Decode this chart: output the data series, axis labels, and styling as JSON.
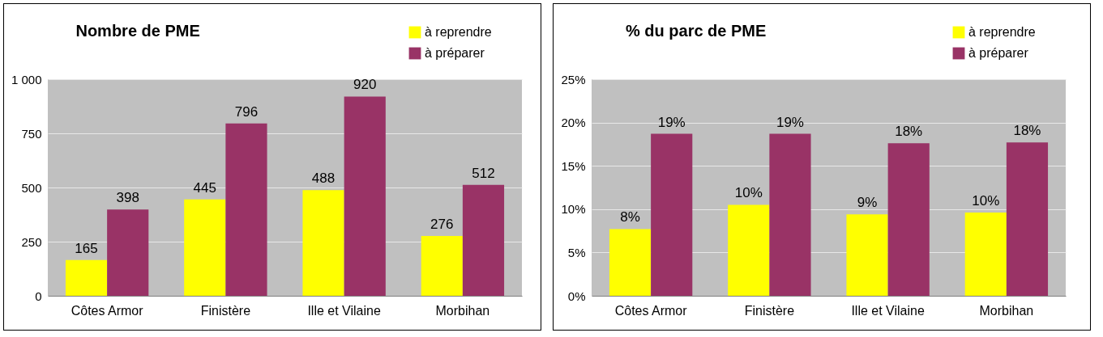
{
  "chart_data": [
    {
      "type": "bar",
      "title": "Nombre de PME",
      "categories": [
        "Côtes Armor",
        "Finistère",
        "Ille et Vilaine",
        "Morbihan"
      ],
      "series": [
        {
          "name": "à reprendre",
          "color": "#ffff00",
          "values": [
            165,
            445,
            488,
            276
          ]
        },
        {
          "name": "à préparer",
          "color": "#993366",
          "values": [
            398,
            796,
            920,
            512
          ]
        }
      ],
      "ylim": [
        0,
        1000
      ],
      "yticks": [
        0,
        250,
        500,
        750,
        {
          "value": 1000,
          "label": "1 000"
        }
      ],
      "grid": "y",
      "legend": "top right",
      "data_labels": true
    },
    {
      "type": "bar",
      "title": "% du parc de PME",
      "categories": [
        "Côtes Armor",
        "Finistère",
        "Ille et Vilaine",
        "Morbihan"
      ],
      "series": [
        {
          "name": "à reprendre",
          "color": "#ffff00",
          "values": [
            7.7,
            10.5,
            9.4,
            9.6
          ],
          "value_labels": [
            "8%",
            "10%",
            "9%",
            "10%"
          ]
        },
        {
          "name": "à préparer",
          "color": "#993366",
          "values": [
            18.7,
            18.7,
            17.6,
            17.7
          ],
          "value_labels": [
            "19%",
            "19%",
            "18%",
            "18%"
          ]
        }
      ],
      "ylim": [
        0,
        25
      ],
      "yticks": [
        {
          "value": 0,
          "label": "0%"
        },
        {
          "value": 5,
          "label": "5%"
        },
        {
          "value": 10,
          "label": "10%"
        },
        {
          "value": 15,
          "label": "15%"
        },
        {
          "value": 20,
          "label": "20%"
        },
        {
          "value": 25,
          "label": "25%"
        }
      ],
      "grid": "y",
      "legend": "top right"
    }
  ]
}
